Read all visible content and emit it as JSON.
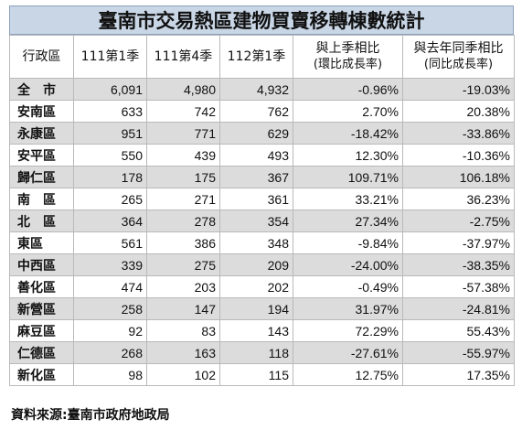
{
  "title": "臺南市交易熱區建物買賣移轉棟數統計",
  "columns": {
    "district": "行政區",
    "q1_111": "111第1季",
    "q4_111": "111第4季",
    "q1_112": "112第1季",
    "qoq": {
      "line1": "與上季相比",
      "line2": "(環比成長率)"
    },
    "yoy": {
      "line1": "與去年同季相比",
      "line2": "(同比成長率)"
    }
  },
  "rows": [
    {
      "name": "全　市",
      "q1_111": "6,091",
      "q4_111": "4,980",
      "q1_112": "4,932",
      "qoq": "-0.96%",
      "yoy": "-19.03%"
    },
    {
      "name": "安南區",
      "q1_111": "633",
      "q4_111": "742",
      "q1_112": "762",
      "qoq": "2.70%",
      "yoy": "20.38%"
    },
    {
      "name": "永康區",
      "q1_111": "951",
      "q4_111": "771",
      "q1_112": "629",
      "qoq": "-18.42%",
      "yoy": "-33.86%"
    },
    {
      "name": "安平區",
      "q1_111": "550",
      "q4_111": "439",
      "q1_112": "493",
      "qoq": "12.30%",
      "yoy": "-10.36%"
    },
    {
      "name": "歸仁區",
      "q1_111": "178",
      "q4_111": "175",
      "q1_112": "367",
      "qoq": "109.71%",
      "yoy": "106.18%"
    },
    {
      "name": "南　區",
      "q1_111": "265",
      "q4_111": "271",
      "q1_112": "361",
      "qoq": "33.21%",
      "yoy": "36.23%"
    },
    {
      "name": "北　區",
      "q1_111": "364",
      "q4_111": "278",
      "q1_112": "354",
      "qoq": "27.34%",
      "yoy": "-2.75%"
    },
    {
      "name": "東區",
      "q1_111": "561",
      "q4_111": "386",
      "q1_112": "348",
      "qoq": "-9.84%",
      "yoy": "-37.97%"
    },
    {
      "name": "中西區",
      "q1_111": "339",
      "q4_111": "275",
      "q1_112": "209",
      "qoq": "-24.00%",
      "yoy": "-38.35%"
    },
    {
      "name": "善化區",
      "q1_111": "474",
      "q4_111": "203",
      "q1_112": "202",
      "qoq": "-0.49%",
      "yoy": "-57.38%"
    },
    {
      "name": "新營區",
      "q1_111": "258",
      "q4_111": "147",
      "q1_112": "194",
      "qoq": "31.97%",
      "yoy": "-24.81%"
    },
    {
      "name": "麻豆區",
      "q1_111": "92",
      "q4_111": "83",
      "q1_112": "143",
      "qoq": "72.29%",
      "yoy": "55.43%"
    },
    {
      "name": "仁德區",
      "q1_111": "268",
      "q4_111": "163",
      "q1_112": "118",
      "qoq": "-27.61%",
      "yoy": "-55.97%"
    },
    {
      "name": "新化區",
      "q1_111": "98",
      "q4_111": "102",
      "q1_112": "115",
      "qoq": "12.75%",
      "yoy": "17.35%"
    }
  ],
  "source": "資料來源:臺南市政府地政局"
}
